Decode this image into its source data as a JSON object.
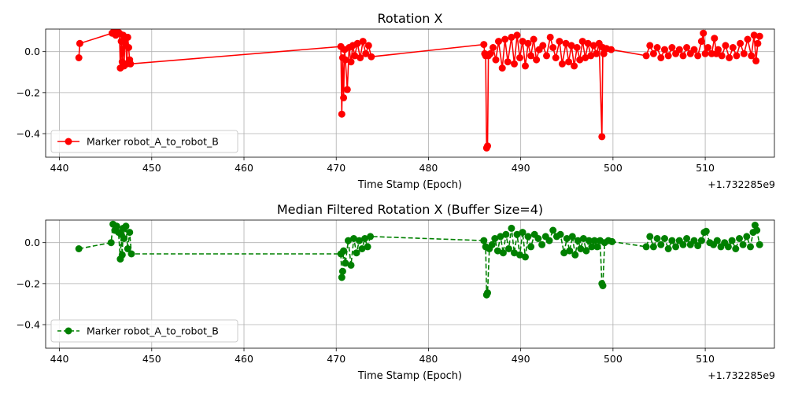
{
  "chart_data": [
    {
      "type": "line",
      "title": "Rotation X",
      "xlabel": "Time Stamp (Epoch)",
      "ylabel": "",
      "x_offset_label": "+1.732285e9",
      "xlim": [
        438.5,
        517.5
      ],
      "ylim": [
        -0.515,
        0.11
      ],
      "xticks": [
        440,
        450,
        460,
        470,
        480,
        490,
        500,
        510
      ],
      "yticks": [
        0.0,
        -0.2,
        -0.4
      ],
      "ytick_labels": [
        "0.0",
        "−0.2",
        "−0.4"
      ],
      "grid": true,
      "legend": "lower-left",
      "line_style": "solid",
      "color": "#ff0000",
      "series": [
        {
          "name": "Marker robot_A_to_robot_B",
          "x": [
            442.1,
            442.2,
            445.7,
            445.9,
            446.1,
            446.3,
            446.5,
            446.6,
            446.7,
            446.8,
            446.9,
            447.0,
            447.1,
            447.2,
            447.3,
            447.4,
            447.5,
            447.6,
            447.7,
            470.5,
            470.6,
            470.7,
            470.8,
            470.9,
            471.0,
            471.2,
            471.4,
            471.6,
            471.8,
            472.0,
            472.3,
            472.6,
            472.9,
            473.2,
            473.5,
            473.8,
            486.0,
            486.1,
            486.2,
            486.3,
            486.4,
            486.5,
            486.7,
            487.0,
            487.3,
            487.6,
            488.0,
            488.3,
            488.6,
            489.0,
            489.3,
            489.6,
            489.9,
            490.2,
            490.5,
            490.8,
            491.1,
            491.4,
            491.7,
            492.0,
            492.4,
            492.8,
            493.2,
            493.5,
            493.8,
            494.2,
            494.5,
            494.9,
            495.2,
            495.5,
            495.8,
            496.1,
            496.4,
            496.7,
            497.0,
            497.3,
            497.6,
            497.9,
            498.2,
            498.5,
            498.8,
            498.9,
            499.0,
            499.3,
            499.8,
            503.6,
            504.0,
            504.4,
            504.8,
            505.2,
            505.6,
            506.0,
            506.4,
            506.8,
            507.2,
            507.6,
            508.0,
            508.4,
            508.8,
            509.2,
            509.6,
            509.8,
            510.0,
            510.3,
            510.7,
            511.0,
            511.2,
            511.4,
            511.8,
            512.2,
            512.6,
            513.0,
            513.4,
            513.8,
            514.2,
            514.6,
            515.0,
            515.3,
            515.5,
            515.7,
            515.9
          ],
          "y": [
            -0.03,
            0.04,
            0.09,
            0.1,
            0.08,
            0.1,
            0.09,
            -0.08,
            0.05,
            -0.05,
            0.08,
            -0.07,
            0.06,
            0.03,
            -0.06,
            0.07,
            0.02,
            -0.04,
            -0.06,
            0.025,
            -0.305,
            -0.03,
            -0.225,
            0.01,
            -0.04,
            -0.185,
            0.02,
            -0.05,
            0.03,
            -0.02,
            0.04,
            -0.03,
            0.05,
            -0.01,
            0.03,
            -0.025,
            0.035,
            -0.01,
            -0.02,
            -0.47,
            -0.46,
            -0.02,
            -0.01,
            0.02,
            -0.04,
            0.05,
            -0.08,
            0.06,
            -0.05,
            0.07,
            -0.06,
            0.08,
            -0.03,
            0.05,
            -0.07,
            0.04,
            -0.02,
            0.06,
            -0.04,
            0.01,
            0.03,
            -0.02,
            0.07,
            0.02,
            -0.03,
            0.05,
            -0.06,
            0.04,
            -0.05,
            0.03,
            -0.07,
            0.02,
            -0.04,
            0.05,
            -0.03,
            0.04,
            -0.02,
            0.03,
            -0.01,
            0.04,
            -0.415,
            0.02,
            -0.01,
            0.015,
            0.01,
            -0.02,
            0.03,
            -0.01,
            0.02,
            -0.03,
            0.01,
            -0.02,
            0.02,
            -0.01,
            0.01,
            -0.02,
            0.02,
            -0.01,
            0.01,
            -0.02,
            0.05,
            0.09,
            -0.01,
            0.02,
            -0.01,
            0.065,
            -0.01,
            0.01,
            -0.02,
            0.03,
            -0.03,
            0.02,
            -0.02,
            0.04,
            -0.01,
            0.06,
            -0.02,
            0.08,
            -0.045,
            0.04,
            0.075
          ]
        }
      ]
    },
    {
      "type": "line",
      "title": "Median Filtered Rotation X (Buffer Size=4)",
      "xlabel": "Time Stamp (Epoch)",
      "ylabel": "",
      "x_offset_label": "+1.732285e9",
      "xlim": [
        438.5,
        517.5
      ],
      "ylim": [
        -0.515,
        0.11
      ],
      "xticks": [
        440,
        450,
        460,
        470,
        480,
        490,
        500,
        510
      ],
      "yticks": [
        0.0,
        -0.2,
        -0.4
      ],
      "ytick_labels": [
        "0.0",
        "−0.2",
        "−0.4"
      ],
      "grid": true,
      "legend": "lower-left",
      "line_style": "dashed",
      "color": "#008000",
      "series": [
        {
          "name": "Marker robot_A_to_robot_B",
          "x": [
            442.1,
            445.6,
            445.8,
            446.0,
            446.2,
            446.4,
            446.6,
            446.7,
            446.8,
            446.9,
            447.0,
            447.2,
            447.4,
            447.6,
            447.8,
            470.5,
            470.6,
            470.7,
            470.8,
            471.0,
            471.3,
            471.6,
            471.9,
            472.2,
            472.5,
            472.8,
            473.1,
            473.4,
            473.7,
            486.0,
            486.2,
            486.3,
            486.4,
            486.6,
            486.9,
            487.2,
            487.5,
            487.8,
            488.1,
            488.4,
            488.7,
            489.0,
            489.3,
            489.6,
            489.9,
            490.2,
            490.5,
            490.8,
            491.1,
            491.5,
            491.9,
            492.3,
            492.7,
            493.1,
            493.5,
            493.9,
            494.3,
            494.7,
            495.0,
            495.3,
            495.6,
            495.9,
            496.2,
            496.5,
            496.8,
            497.1,
            497.4,
            497.7,
            498.0,
            498.3,
            498.6,
            498.8,
            498.9,
            499.1,
            499.5,
            499.9,
            503.6,
            504.0,
            504.4,
            504.8,
            505.2,
            505.6,
            506.0,
            506.4,
            506.8,
            507.2,
            507.6,
            508.0,
            508.4,
            508.8,
            509.2,
            509.6,
            509.9,
            510.1,
            510.5,
            510.9,
            511.3,
            511.7,
            512.1,
            512.5,
            512.9,
            513.3,
            513.7,
            514.1,
            514.5,
            514.9,
            515.2,
            515.4,
            515.6,
            515.9
          ],
          "y": [
            -0.03,
            0.0,
            0.09,
            0.06,
            0.08,
            0.05,
            -0.08,
            0.04,
            -0.06,
            0.07,
            0.02,
            0.08,
            -0.03,
            0.05,
            -0.055,
            -0.055,
            -0.17,
            -0.14,
            -0.04,
            -0.1,
            0.01,
            -0.11,
            0.02,
            -0.05,
            0.01,
            -0.03,
            0.02,
            -0.02,
            0.03,
            0.01,
            -0.02,
            -0.255,
            -0.245,
            -0.03,
            -0.01,
            0.02,
            -0.04,
            0.03,
            -0.05,
            0.04,
            -0.03,
            0.07,
            -0.05,
            0.04,
            -0.06,
            0.05,
            -0.07,
            0.03,
            -0.02,
            0.04,
            0.02,
            -0.01,
            0.03,
            0.01,
            0.06,
            0.03,
            0.04,
            -0.05,
            0.02,
            -0.04,
            0.03,
            -0.06,
            0.01,
            -0.03,
            0.02,
            -0.04,
            0.01,
            -0.02,
            0.01,
            -0.02,
            0.01,
            -0.2,
            -0.21,
            0.0,
            0.01,
            0.005,
            -0.02,
            0.03,
            -0.02,
            0.02,
            -0.01,
            0.02,
            -0.03,
            0.01,
            -0.02,
            0.01,
            -0.01,
            0.02,
            -0.01,
            0.01,
            -0.015,
            0.01,
            0.05,
            0.055,
            0.0,
            -0.01,
            0.01,
            -0.02,
            0.0,
            -0.02,
            0.01,
            -0.03,
            0.02,
            -0.01,
            0.03,
            -0.02,
            0.05,
            0.085,
            0.06,
            -0.01
          ]
        }
      ]
    }
  ]
}
